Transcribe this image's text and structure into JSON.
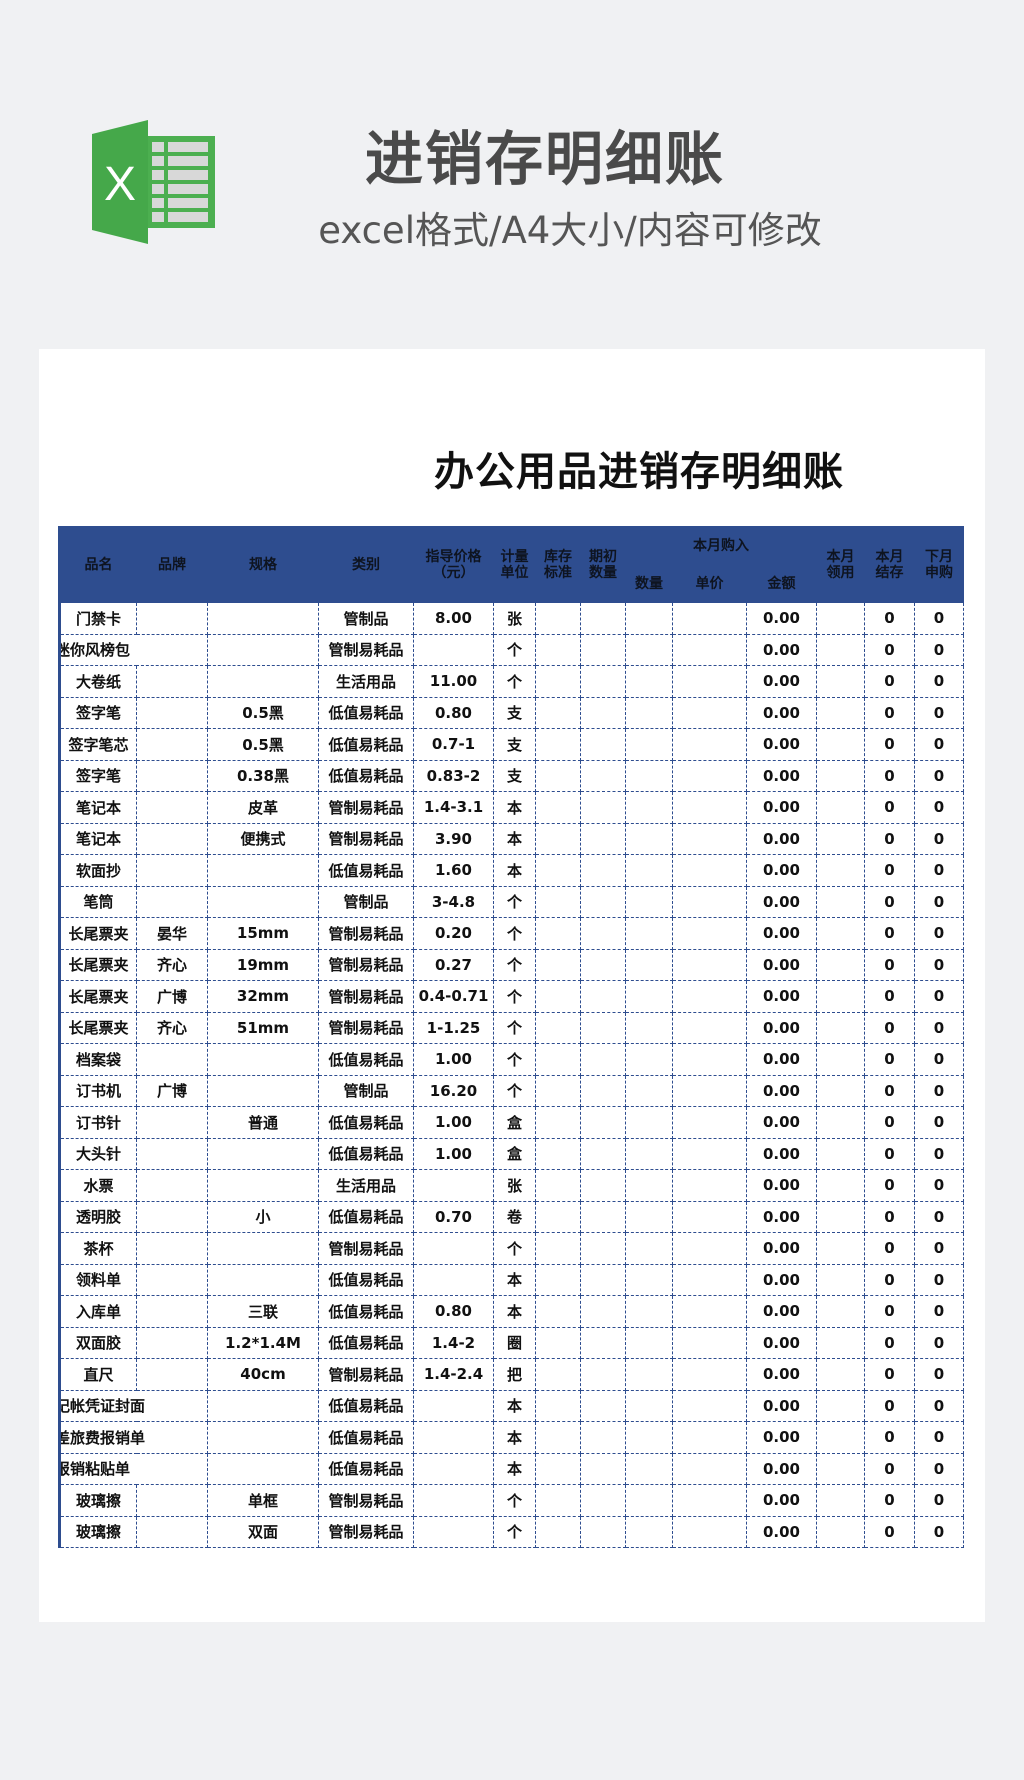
{
  "banner": {
    "title": "进销存明细账",
    "subtitle": "excel格式/A4大小/内容可修改",
    "logo_letter": "X",
    "logo_icon": "excel-icon",
    "accent": "#4caf50"
  },
  "sheet": {
    "title": "办公用品进销存明细账",
    "header_color": "#2e4d8f",
    "headers": [
      "品名",
      "品牌",
      "规格",
      "类别",
      "指导价格\n（元）",
      "计量\n单位",
      "库存\n标准",
      "期初\n数量",
      "本月购入",
      "本月\n领用",
      "本月\n结存",
      "下月\n申购"
    ],
    "sub_headers": [
      "数量",
      "单价",
      "金额"
    ],
    "rows": [
      [
        "门禁卡",
        "",
        "",
        "管制品",
        "8.00",
        "张",
        "0.00",
        "0",
        "0"
      ],
      [
        "迷你风榜包",
        "",
        "",
        "管制易耗品",
        "",
        "个",
        "0.00",
        "0",
        "0"
      ],
      [
        "大卷纸",
        "",
        "",
        "生活用品",
        "11.00",
        "个",
        "0.00",
        "0",
        "0"
      ],
      [
        "签字笔",
        "",
        "0.5黑",
        "低值易耗品",
        "0.80",
        "支",
        "0.00",
        "0",
        "0"
      ],
      [
        "签字笔芯",
        "",
        "0.5黑",
        "低值易耗品",
        "0.7-1",
        "支",
        "0.00",
        "0",
        "0"
      ],
      [
        "签字笔",
        "",
        "0.38黑",
        "低值易耗品",
        "0.83-2",
        "支",
        "0.00",
        "0",
        "0"
      ],
      [
        "笔记本",
        "",
        "皮革",
        "管制易耗品",
        "1.4-3.1",
        "本",
        "0.00",
        "0",
        "0"
      ],
      [
        "笔记本",
        "",
        "便携式",
        "管制易耗品",
        "3.90",
        "本",
        "0.00",
        "0",
        "0"
      ],
      [
        "软面抄",
        "",
        "",
        "低值易耗品",
        "1.60",
        "本",
        "0.00",
        "0",
        "0"
      ],
      [
        "笔筒",
        "",
        "",
        "管制品",
        "3-4.8",
        "个",
        "0.00",
        "0",
        "0"
      ],
      [
        "长尾票夹",
        "晏华",
        "15mm",
        "管制易耗品",
        "0.20",
        "个",
        "0.00",
        "0",
        "0"
      ],
      [
        "长尾票夹",
        "齐心",
        "19mm",
        "管制易耗品",
        "0.27",
        "个",
        "0.00",
        "0",
        "0"
      ],
      [
        "长尾票夹",
        "广博",
        "32mm",
        "管制易耗品",
        "0.4-0.71",
        "个",
        "0.00",
        "0",
        "0"
      ],
      [
        "长尾票夹",
        "齐心",
        "51mm",
        "管制易耗品",
        "1-1.25",
        "个",
        "0.00",
        "0",
        "0"
      ],
      [
        "档案袋",
        "",
        "",
        "低值易耗品",
        "1.00",
        "个",
        "0.00",
        "0",
        "0"
      ],
      [
        "订书机",
        "广博",
        "",
        "管制品",
        "16.20",
        "个",
        "0.00",
        "0",
        "0"
      ],
      [
        "订书针",
        "",
        "普通",
        "低值易耗品",
        "1.00",
        "盒",
        "0.00",
        "0",
        "0"
      ],
      [
        "大头针",
        "",
        "",
        "低值易耗品",
        "1.00",
        "盒",
        "0.00",
        "0",
        "0"
      ],
      [
        "水票",
        "",
        "",
        "生活用品",
        "",
        "张",
        "0.00",
        "0",
        "0"
      ],
      [
        "透明胶",
        "",
        "小",
        "低值易耗品",
        "0.70",
        "卷",
        "0.00",
        "0",
        "0"
      ],
      [
        "茶杯",
        "",
        "",
        "管制易耗品",
        "",
        "个",
        "0.00",
        "0",
        "0"
      ],
      [
        "领料单",
        "",
        "",
        "低值易耗品",
        "",
        "本",
        "0.00",
        "0",
        "0"
      ],
      [
        "入库单",
        "",
        "三联",
        "低值易耗品",
        "0.80",
        "本",
        "0.00",
        "0",
        "0"
      ],
      [
        "双面胶",
        "",
        "1.2*1.4M",
        "低值易耗品",
        "1.4-2",
        "圈",
        "0.00",
        "0",
        "0"
      ],
      [
        "直尺",
        "",
        "40cm",
        "管制易耗品",
        "1.4-2.4",
        "把",
        "0.00",
        "0",
        "0"
      ],
      [
        "记帐凭证封面",
        "",
        "",
        "低值易耗品",
        "",
        "本",
        "0.00",
        "0",
        "0"
      ],
      [
        "差旅费报销单",
        "",
        "",
        "低值易耗品",
        "",
        "本",
        "0.00",
        "0",
        "0"
      ],
      [
        "报销粘贴单",
        "",
        "",
        "低值易耗品",
        "",
        "本",
        "0.00",
        "0",
        "0"
      ],
      [
        "玻璃擦",
        "",
        "单框",
        "管制易耗品",
        "",
        "个",
        "0.00",
        "0",
        "0"
      ],
      [
        "玻璃擦",
        "",
        "双面",
        "管制易耗品",
        "",
        "个",
        "0.00",
        "0",
        "0"
      ]
    ]
  }
}
